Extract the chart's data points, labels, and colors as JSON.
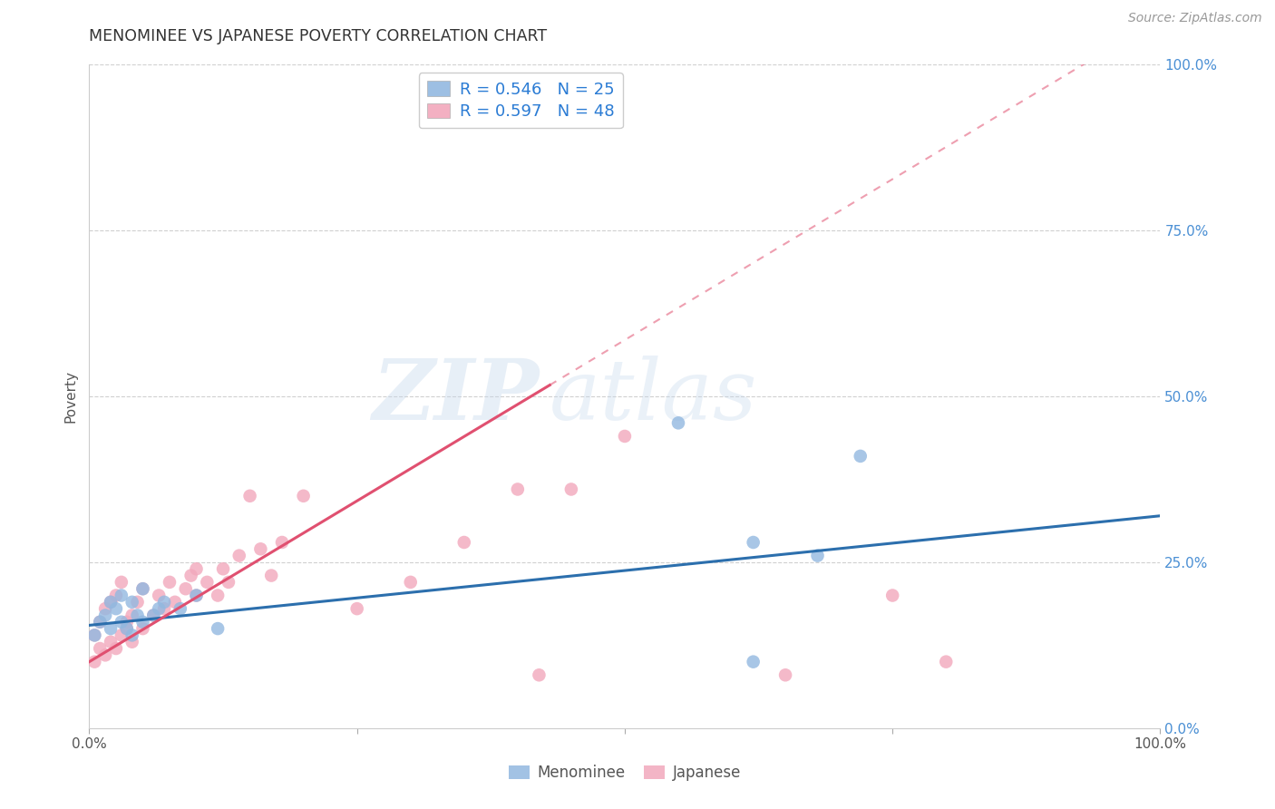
{
  "title": "MENOMINEE VS JAPANESE POVERTY CORRELATION CHART",
  "source": "Source: ZipAtlas.com",
  "ylabel": "Poverty",
  "xlim": [
    0.0,
    1.0
  ],
  "ylim": [
    0.0,
    1.0
  ],
  "watermark_part1": "ZIP",
  "watermark_part2": "atlas",
  "menominee_color": "#92b8e0",
  "japanese_color": "#f2a8bc",
  "trendline_blue": "#2c6fad",
  "trendline_pink": "#e05070",
  "legend_r_menominee": "R = 0.546",
  "legend_n_menominee": "N = 25",
  "legend_r_japanese": "R = 0.597",
  "legend_n_japanese": "N = 48",
  "menominee_x": [
    0.005,
    0.01,
    0.015,
    0.02,
    0.02,
    0.025,
    0.03,
    0.03,
    0.035,
    0.04,
    0.04,
    0.045,
    0.05,
    0.05,
    0.06,
    0.065,
    0.07,
    0.085,
    0.1,
    0.12,
    0.55,
    0.62,
    0.68,
    0.72,
    0.62
  ],
  "menominee_y": [
    0.14,
    0.16,
    0.17,
    0.15,
    0.19,
    0.18,
    0.16,
    0.2,
    0.15,
    0.14,
    0.19,
    0.17,
    0.16,
    0.21,
    0.17,
    0.18,
    0.19,
    0.18,
    0.2,
    0.15,
    0.46,
    0.28,
    0.26,
    0.41,
    0.1
  ],
  "japanese_x": [
    0.005,
    0.005,
    0.01,
    0.01,
    0.015,
    0.015,
    0.02,
    0.02,
    0.025,
    0.025,
    0.03,
    0.03,
    0.035,
    0.035,
    0.04,
    0.04,
    0.045,
    0.05,
    0.05,
    0.06,
    0.065,
    0.07,
    0.075,
    0.08,
    0.09,
    0.095,
    0.1,
    0.1,
    0.11,
    0.12,
    0.125,
    0.13,
    0.14,
    0.15,
    0.16,
    0.17,
    0.18,
    0.2,
    0.25,
    0.3,
    0.35,
    0.4,
    0.42,
    0.45,
    0.5,
    0.65,
    0.75,
    0.8
  ],
  "japanese_y": [
    0.1,
    0.14,
    0.12,
    0.16,
    0.11,
    0.18,
    0.13,
    0.19,
    0.12,
    0.2,
    0.14,
    0.22,
    0.16,
    0.15,
    0.17,
    0.13,
    0.19,
    0.15,
    0.21,
    0.17,
    0.2,
    0.18,
    0.22,
    0.19,
    0.21,
    0.23,
    0.2,
    0.24,
    0.22,
    0.2,
    0.24,
    0.22,
    0.26,
    0.35,
    0.27,
    0.23,
    0.28,
    0.35,
    0.18,
    0.22,
    0.28,
    0.36,
    0.08,
    0.36,
    0.44,
    0.08,
    0.2,
    0.1
  ],
  "grid_color": "#d0d0d0",
  "grid_linestyle": "--",
  "background_color": "#ffffff",
  "menominee_label": "Menominee",
  "japanese_label": "Japanese"
}
